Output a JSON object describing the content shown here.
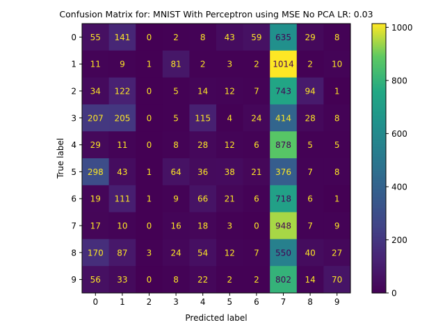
{
  "chart_data": {
    "type": "heatmap",
    "title": "Confusion Matrix for: MNIST With Perceptron using MSE No PCA LR: 0.03",
    "xlabel": "Predicted label",
    "ylabel": "True label",
    "x_categories": [
      "0",
      "1",
      "2",
      "3",
      "4",
      "5",
      "6",
      "7",
      "8",
      "9"
    ],
    "y_categories": [
      "0",
      "1",
      "2",
      "3",
      "4",
      "5",
      "6",
      "7",
      "8",
      "9"
    ],
    "values": [
      [
        55,
        141,
        0,
        2,
        8,
        43,
        59,
        635,
        29,
        8
      ],
      [
        11,
        9,
        1,
        81,
        2,
        3,
        2,
        1014,
        2,
        10
      ],
      [
        34,
        122,
        0,
        5,
        14,
        12,
        7,
        743,
        94,
        1
      ],
      [
        207,
        205,
        0,
        5,
        115,
        4,
        24,
        414,
        28,
        8
      ],
      [
        29,
        11,
        0,
        8,
        28,
        12,
        6,
        878,
        5,
        5
      ],
      [
        298,
        43,
        1,
        64,
        36,
        38,
        21,
        376,
        7,
        8
      ],
      [
        19,
        111,
        1,
        9,
        66,
        21,
        6,
        718,
        6,
        1
      ],
      [
        17,
        10,
        0,
        16,
        18,
        3,
        0,
        948,
        7,
        9
      ],
      [
        170,
        87,
        3,
        24,
        54,
        12,
        7,
        550,
        40,
        27
      ],
      [
        56,
        33,
        0,
        8,
        22,
        2,
        2,
        802,
        14,
        70
      ]
    ],
    "colormap": "viridis",
    "colorbar": {
      "min": 0,
      "max": 1014,
      "ticks": [
        0,
        200,
        400,
        600,
        800,
        1000
      ]
    },
    "text_colors": {
      "on_dark": "#fde725",
      "on_light": "#440154"
    },
    "grid": false
  }
}
